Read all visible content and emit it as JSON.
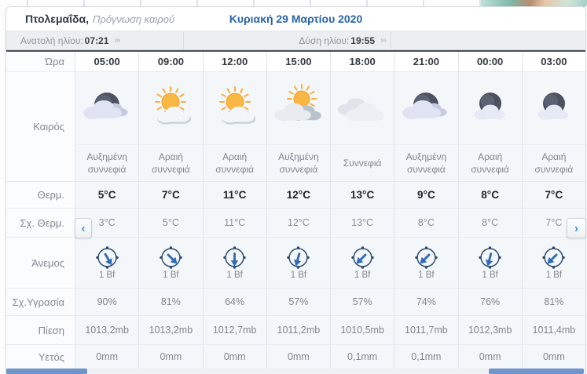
{
  "header": {
    "location": "Πτολεμαΐδα,",
    "subtitle": "Πρόγνωση καιρού",
    "date": "Κυριακή 29 Μαρτίου 2020"
  },
  "sun": {
    "sunrise_label": "Ανατολή ηλίου:",
    "sunrise_time": "07:21",
    "sunset_label": "Δύση ηλίου:",
    "sunset_time": "19:55",
    "more_arrows": "›››"
  },
  "nav": {
    "prev": "‹",
    "next": "›"
  },
  "colors": {
    "accent_blue": "#2a64a8",
    "compass_navy": "#2e4a6e",
    "arrow_blue": "#2f6db5",
    "scrollbar_blue": "#6f95ca"
  },
  "table": {
    "row_labels": {
      "time": "Ώρα",
      "weather": "Καιρός",
      "temp": "Θερμ.",
      "feels": "Σχ. Θερμ.",
      "wind": "Άνεμος",
      "humidity": "Σχ.Υγρασία",
      "pressure": "Πίεση",
      "precip": "Υετός"
    },
    "times": [
      "05:00",
      "09:00",
      "12:00",
      "15:00",
      "18:00",
      "21:00",
      "00:00",
      "03:00"
    ],
    "icons": [
      "moon-clouds",
      "sun-cloud",
      "sun-cloud",
      "sun-clouds",
      "clouds",
      "moon-clouds",
      "moon-cloud",
      "moon-cloud"
    ],
    "conditions": [
      "Αυξημένη συννεφιά",
      "Αραιή συννεφιά",
      "Αραιή συννεφιά",
      "Αυξημένη συννεφιά",
      "Συννεφιά",
      "Αυξημένη συννεφιά",
      "Αραιή συννεφιά",
      "Αραιή συννεφιά"
    ],
    "temps": [
      "5°C",
      "7°C",
      "11°C",
      "12°C",
      "13°C",
      "9°C",
      "8°C",
      "7°C"
    ],
    "feels": [
      "3°C",
      "5°C",
      "11°C",
      "12°C",
      "13°C",
      "8°C",
      "8°C",
      "7°C"
    ],
    "wind_bf": [
      "1 Bf",
      "1 Bf",
      "1 Bf",
      "1 Bf",
      "1 Bf",
      "1 Bf",
      "1 Bf",
      "1 Bf"
    ],
    "wind_rotations": [
      150,
      135,
      180,
      195,
      225,
      225,
      195,
      225
    ],
    "humidity": [
      "90%",
      "81%",
      "64%",
      "57%",
      "57%",
      "74%",
      "76%",
      "81%"
    ],
    "pressure": [
      "1013,2mb",
      "1013,2mb",
      "1012,7mb",
      "1011,2mb",
      "1010,5mb",
      "1011,7mb",
      "1012,3mb",
      "1011,4mb"
    ],
    "precip": [
      "0mm",
      "0mm",
      "0mm",
      "0mm",
      "0,1mm",
      "0,1mm",
      "0mm",
      "0mm"
    ]
  }
}
